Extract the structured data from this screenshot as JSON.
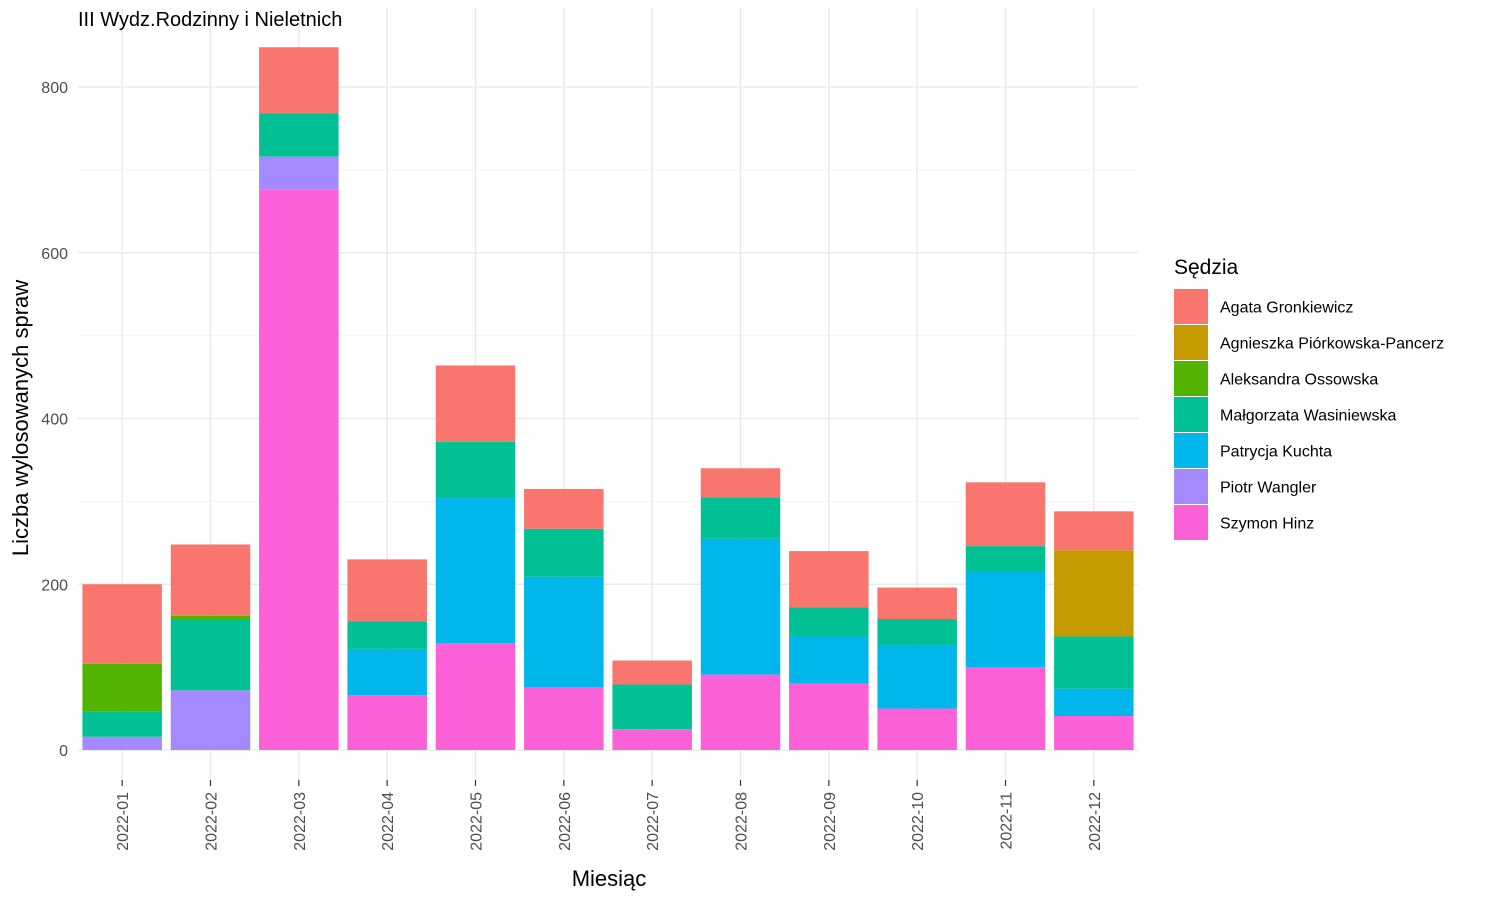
{
  "chart_data": {
    "type": "bar",
    "stacked": true,
    "title": "III Wydz.Rodzinny i Nieletnich",
    "xlabel": "Miesiąc",
    "ylabel": "Liczba wylosowanych spraw",
    "ylim": [
      0,
      860
    ],
    "y_ticks": [
      0,
      200,
      400,
      600,
      800
    ],
    "grid": true,
    "legend_title": "Sędzia",
    "legend_position": "right",
    "categories": [
      "2022-01",
      "2022-02",
      "2022-03",
      "2022-04",
      "2022-05",
      "2022-06",
      "2022-07",
      "2022-08",
      "2022-09",
      "2022-10",
      "2022-11",
      "2022-12"
    ],
    "series": [
      {
        "name": "Agata Gronkiewicz",
        "color": "#F8766D",
        "values": [
          96,
          86,
          80,
          75,
          92,
          48,
          29,
          35,
          68,
          38,
          77,
          47
        ]
      },
      {
        "name": "Agnieszka Piórkowska-Pancerz",
        "color": "#C49A00",
        "values": [
          0,
          0,
          0,
          0,
          0,
          0,
          0,
          0,
          0,
          0,
          0,
          104
        ]
      },
      {
        "name": "Aleksandra Ossowska",
        "color": "#53B400",
        "values": [
          58,
          4,
          0,
          0,
          0,
          0,
          0,
          0,
          0,
          0,
          0,
          0
        ]
      },
      {
        "name": "Małgorzata Wasiniewska",
        "color": "#00C094",
        "values": [
          30,
          86,
          52,
          33,
          68,
          58,
          54,
          50,
          35,
          32,
          30,
          63
        ]
      },
      {
        "name": "Patrycja Kuchta",
        "color": "#00B6EB",
        "values": [
          0,
          0,
          0,
          56,
          175,
          133,
          0,
          164,
          57,
          76,
          116,
          33
        ]
      },
      {
        "name": "Piotr Wangler",
        "color": "#A58AFF",
        "values": [
          16,
          72,
          40,
          0,
          0,
          0,
          0,
          0,
          0,
          0,
          0,
          0
        ]
      },
      {
        "name": "Szymon Hinz",
        "color": "#FB61D7",
        "values": [
          0,
          0,
          676,
          66,
          129,
          76,
          25,
          91,
          80,
          50,
          100,
          41
        ]
      }
    ]
  }
}
